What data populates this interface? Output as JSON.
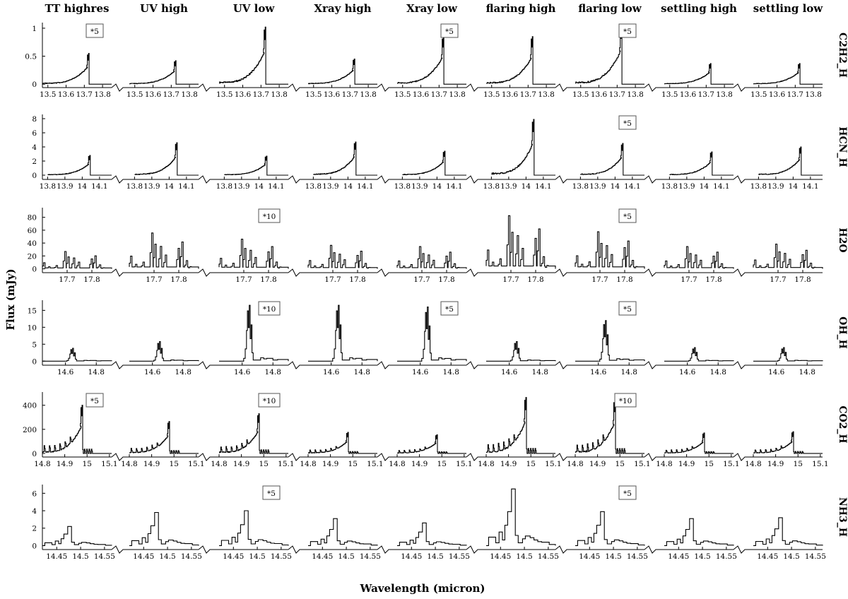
{
  "figure": {
    "xlabel": "Wavelength (micron)",
    "ylabel": "Flux (mJy)"
  },
  "chart_data": {
    "type": "line",
    "layout": "grid",
    "columns": [
      "TT highres",
      "UV high",
      "UV low",
      "Xray high",
      "Xray low",
      "flaring high",
      "flaring low",
      "settling high",
      "settling low"
    ],
    "rows": [
      {
        "label": "C2H2_H",
        "xlim": [
          13.47,
          13.85
        ],
        "ylim": [
          -0.06,
          1.1
        ],
        "xticks": [
          13.5,
          13.6,
          13.7,
          13.8
        ],
        "xtick_labels": [
          "13.5",
          "13.6",
          "13.7",
          "13.8"
        ],
        "yticks": [
          0,
          0.5,
          1
        ],
        "ytick_labels": [
          "0",
          "0.5",
          "1"
        ],
        "ramp_start": 13.47,
        "peak_x": 13.72,
        "peak_heights": [
          0.55,
          0.42,
          1.02,
          0.45,
          0.85,
          0.85,
          1.05,
          0.37,
          0.37
        ],
        "annotations": [
          "*5",
          "",
          "",
          "",
          "*5",
          "",
          "*5",
          "",
          ""
        ]
      },
      {
        "label": "HCN_H",
        "xlim": [
          13.77,
          14.17
        ],
        "ylim": [
          -0.6,
          8.6
        ],
        "xticks": [
          13.8,
          13.9,
          14.0,
          14.1
        ],
        "xtick_labels": [
          "13.8",
          "13.9",
          "14",
          "14.1"
        ],
        "yticks": [
          0,
          2,
          4,
          6,
          8
        ],
        "ytick_labels": [
          "0",
          "2",
          "4",
          "6",
          "8"
        ],
        "ramp_start": 13.8,
        "peak_x": 14.04,
        "peak_heights": [
          2.8,
          4.6,
          2.7,
          4.7,
          3.4,
          7.9,
          4.5,
          3.3,
          4.0
        ],
        "annotations": [
          "",
          "",
          "",
          "",
          "",
          "",
          "*5",
          "",
          ""
        ]
      },
      {
        "label": "H2O",
        "xlim": [
          17.6,
          17.88
        ],
        "ylim": [
          -6,
          95
        ],
        "xticks": [
          17.7,
          17.8
        ],
        "xtick_labels": [
          "17.7",
          "17.8"
        ],
        "yticks": [
          0,
          20,
          40,
          60,
          80
        ],
        "ytick_labels": [
          "0",
          "20",
          "40",
          "60",
          "80"
        ],
        "peak_heights": [
          28,
          58,
          48,
          38,
          36,
          86,
          60,
          36,
          40
        ],
        "annotations": [
          "",
          "",
          "*10",
          "",
          "",
          "",
          "*5",
          "",
          ""
        ]
      },
      {
        "label": "OH_H",
        "xlim": [
          14.45,
          14.9
        ],
        "ylim": [
          -1.2,
          18
        ],
        "xticks": [
          14.6,
          14.8
        ],
        "xtick_labels": [
          "14.6",
          "14.8"
        ],
        "yticks": [
          0,
          5,
          10,
          15
        ],
        "ytick_labels": [
          "0",
          "5",
          "10",
          "15"
        ],
        "peak_heights": [
          3.8,
          5.8,
          16.5,
          16.5,
          16.0,
          5.8,
          12.0,
          4.0,
          4.0
        ],
        "annotations": [
          "",
          "",
          "*10",
          "",
          "*5",
          "",
          "*5",
          "",
          ""
        ]
      },
      {
        "label": "CO2_H",
        "xlim": [
          14.8,
          15.11
        ],
        "ylim": [
          -30,
          510
        ],
        "xticks": [
          14.8,
          14.9,
          15.0,
          15.1
        ],
        "xtick_labels": [
          "14.8",
          "14.9",
          "15",
          "15.1"
        ],
        "yticks": [
          0,
          200,
          400
        ],
        "ytick_labels": [
          "0",
          "200",
          "400"
        ],
        "ramp_start": 14.8,
        "peak_x": 14.975,
        "peak_heights": [
          400,
          265,
          330,
          175,
          155,
          465,
          445,
          170,
          180
        ],
        "annotations": [
          "*5",
          "",
          "*10",
          "",
          "",
          "",
          "*10",
          "",
          ""
        ]
      },
      {
        "label": "NH3_H",
        "xlim": [
          14.42,
          14.565
        ],
        "ylim": [
          -0.45,
          7.0
        ],
        "xticks": [
          14.45,
          14.5,
          14.55
        ],
        "xtick_labels": [
          "14.45",
          "14.5",
          "14.55"
        ],
        "yticks": [
          0,
          2,
          4,
          6
        ],
        "ytick_labels": [
          "0",
          "2",
          "4",
          "6"
        ],
        "peak_heights": [
          2.2,
          3.8,
          4.0,
          3.1,
          2.6,
          6.5,
          3.9,
          3.1,
          3.2
        ],
        "annotations": [
          "",
          "",
          "*5",
          "",
          "",
          "",
          "*5",
          "",
          ""
        ]
      }
    ]
  }
}
